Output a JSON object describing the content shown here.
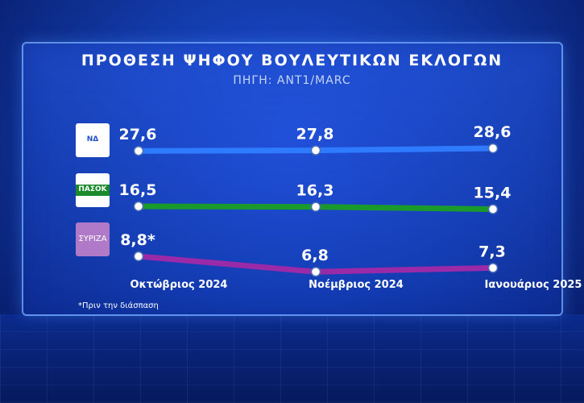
{
  "chart_data": {
    "type": "line",
    "title": "ΠΡΟΘΕΣΗ ΨΗΦΟΥ ΒΟΥΛΕΥΤΙΚΩΝ ΕΚΛΟΓΩΝ",
    "subtitle": "ΠΗΓΗ: ΑΝΤ1/MARC",
    "categories": [
      "Οκτώβριος  2024",
      "Νοέμβριος  2024",
      "Ιανουάριος  2025"
    ],
    "series": [
      {
        "values": [
          27.6,
          27.8,
          28.6
        ],
        "labels": [
          "27,6",
          "27,8",
          "28,6"
        ],
        "color": "#2f7bff",
        "logo": "nd-logo"
      },
      {
        "values": [
          16.5,
          16.3,
          15.4
        ],
        "labels": [
          "16,5",
          "16,3",
          "15,4"
        ],
        "color": "#1a9a2a",
        "logo": "pasok-logo"
      },
      {
        "values": [
          8.8,
          6.8,
          7.3
        ],
        "labels": [
          "8,8*",
          "6,8",
          "7,3"
        ],
        "color": "#9a2aa8",
        "logo": "syriza-logo"
      }
    ],
    "footnote": "*Πριν την διάσπαση",
    "grid": false,
    "legend": "logos-left"
  },
  "logos": {
    "nd": "ΝΔ",
    "pasok": "ΠΑΣΟΚ",
    "syriza": "ΣΥΡΙΖΑ"
  },
  "colors": {
    "background": "#123aa8",
    "panel_border": "#78afff",
    "marker_fill": "#ffffff"
  }
}
